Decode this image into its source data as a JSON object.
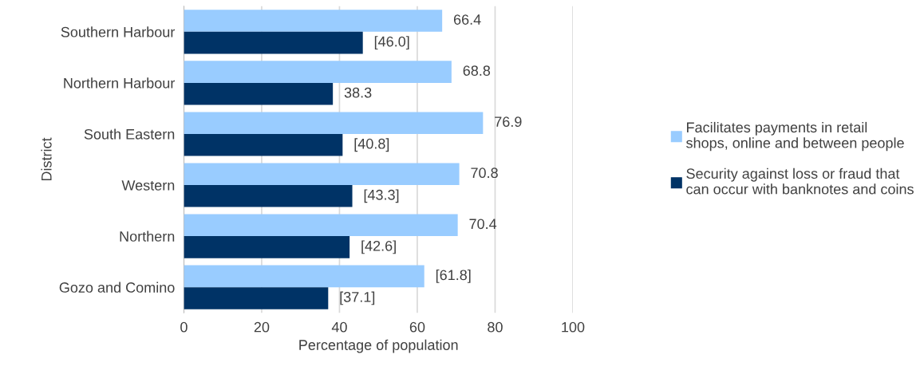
{
  "chart_data": {
    "type": "bar",
    "orientation": "horizontal",
    "categories": [
      "Southern Harbour",
      "Northern Harbour",
      "South Eastern",
      "Western",
      "Northern",
      "Gozo and Comino"
    ],
    "series": [
      {
        "name": "Facilitates payments in retail shops, online and between people",
        "color": "#99ccff",
        "values": [
          66.4,
          68.8,
          76.9,
          70.8,
          70.4,
          61.8
        ],
        "value_labels": [
          "66.4",
          "68.8",
          "76.9",
          "70.8",
          "70.4",
          "[61.8]"
        ]
      },
      {
        "name": "Security against loss or fraud that can occur with banknotes and coins",
        "color": "#003366",
        "values": [
          46.0,
          38.3,
          40.8,
          43.3,
          42.6,
          37.1
        ],
        "value_labels": [
          "[46.0]",
          "38.3",
          "[40.8]",
          "[43.3]",
          "[42.6]",
          "[37.1]"
        ]
      }
    ],
    "xlabel": "Percentage of population",
    "ylabel": "District",
    "xlim": [
      0,
      100
    ],
    "xticks": [
      0,
      20,
      40,
      60,
      80,
      100
    ],
    "grid": "x",
    "legend": "right"
  }
}
